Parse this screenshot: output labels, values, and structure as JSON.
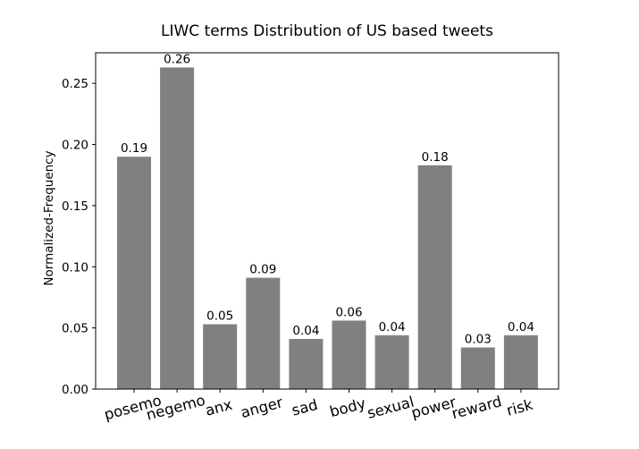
{
  "chart_data": {
    "type": "bar",
    "title": "LIWC terms Distribution of US based tweets",
    "xlabel": "",
    "ylabel": "Normalized-Frequency",
    "categories": [
      "posemo",
      "negemo",
      "anx",
      "anger",
      "sad",
      "body",
      "sexual",
      "power",
      "reward",
      "risk"
    ],
    "values": [
      0.19,
      0.263,
      0.053,
      0.091,
      0.041,
      0.056,
      0.044,
      0.183,
      0.034,
      0.044
    ],
    "data_labels": [
      "0.19",
      "0.26",
      "0.05",
      "0.09",
      "0.04",
      "0.06",
      "0.04",
      "0.18",
      "0.03",
      "0.04"
    ],
    "ylim": [
      0,
      0.275
    ],
    "yticks": [
      "0.00",
      "0.05",
      "0.10",
      "0.15",
      "0.20",
      "0.25"
    ],
    "ytick_values": [
      0,
      0.05,
      0.1,
      0.15,
      0.2,
      0.25
    ],
    "grid": false,
    "bar_color": "#808080",
    "xtick_rotation_deg": -15
  }
}
